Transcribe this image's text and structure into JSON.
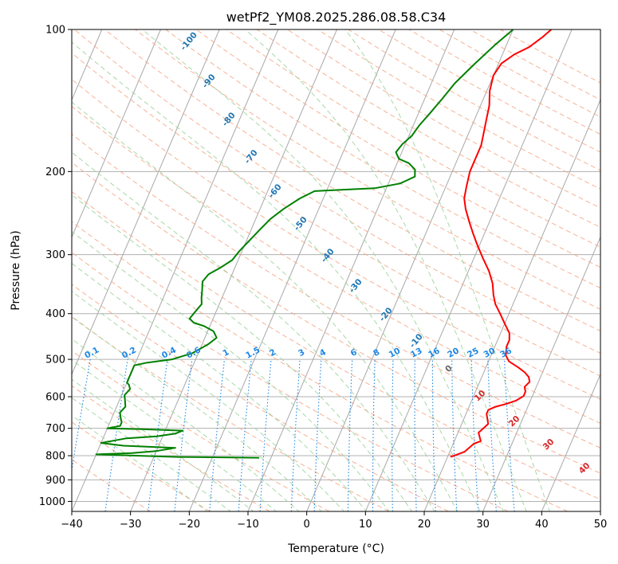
{
  "chart_data": {
    "type": "line",
    "title": "wetPf2_YM08.2025.286.08.58.C34",
    "xlabel": "Temperature (°C)",
    "ylabel": "Pressure (hPa)",
    "xlim": [
      -40,
      50
    ],
    "ylim": [
      1050,
      100
    ],
    "y_scale": "log",
    "x_ticks": [
      -40,
      -30,
      -20,
      -10,
      0,
      10,
      20,
      30,
      40,
      50
    ],
    "y_ticks": [
      100,
      200,
      300,
      400,
      500,
      600,
      700,
      800,
      900,
      1000
    ],
    "grid": true,
    "colors": {
      "temperature": "#ff0000",
      "dewpoint": "#008000",
      "isotherm": "#a8a8a8",
      "dry_adiabat": "#f4a582",
      "moist_adiabat": "#9fd49f",
      "mixing_ratio": "#1e88e5",
      "label_blue": "#1f77b4",
      "label_red": "#d62728",
      "label_gray": "#666666"
    },
    "series": [
      {
        "key": "temperature",
        "points": [
          [
            20.5,
            805
          ],
          [
            21.5,
            795
          ],
          [
            22.5,
            785
          ],
          [
            23,
            770
          ],
          [
            23.5,
            755
          ],
          [
            24.5,
            745
          ],
          [
            24,
            730
          ],
          [
            23.5,
            715
          ],
          [
            24,
            700
          ],
          [
            24.5,
            685
          ],
          [
            24,
            668
          ],
          [
            23.5,
            652
          ],
          [
            23.5,
            640
          ],
          [
            24.5,
            630
          ],
          [
            26,
            622
          ],
          [
            27.5,
            612
          ],
          [
            28.5,
            598
          ],
          [
            28.5,
            585
          ],
          [
            28,
            572
          ],
          [
            28.5,
            558
          ],
          [
            28,
            545
          ],
          [
            27,
            533
          ],
          [
            25.5,
            520
          ],
          [
            23.5,
            505
          ],
          [
            22.5,
            490
          ],
          [
            22,
            470
          ],
          [
            22,
            455
          ],
          [
            21.5,
            440
          ],
          [
            20,
            420
          ],
          [
            18.5,
            400
          ],
          [
            17,
            382
          ],
          [
            16,
            365
          ],
          [
            15,
            345
          ],
          [
            13.5,
            325
          ],
          [
            11.5,
            305
          ],
          [
            9.5,
            285
          ],
          [
            8,
            270
          ],
          [
            6.5,
            255
          ],
          [
            5,
            240
          ],
          [
            4,
            228
          ],
          [
            3.5,
            215
          ],
          [
            3,
            200
          ],
          [
            3,
            188
          ],
          [
            3,
            176
          ],
          [
            2.5,
            165
          ],
          [
            2,
            155
          ],
          [
            1.5,
            145
          ],
          [
            0.5,
            135
          ],
          [
            0,
            125
          ],
          [
            0.5,
            118
          ],
          [
            2,
            113
          ],
          [
            4,
            109
          ],
          [
            5.5,
            104
          ],
          [
            6.5,
            100
          ]
        ]
      },
      {
        "key": "dewpoint",
        "points": [
          [
            -12,
            808
          ],
          [
            -26,
            805
          ],
          [
            -40,
            795
          ],
          [
            -34,
            790
          ],
          [
            -30,
            782
          ],
          [
            -27,
            770
          ],
          [
            -36,
            762
          ],
          [
            -40,
            752
          ],
          [
            -36,
            735
          ],
          [
            -31,
            728
          ],
          [
            -28,
            718
          ],
          [
            -27,
            708
          ],
          [
            -34,
            703
          ],
          [
            -40,
            700
          ],
          [
            -38,
            692
          ],
          [
            -38,
            680
          ],
          [
            -38.5,
            665
          ],
          [
            -39,
            648
          ],
          [
            -38.5,
            630
          ],
          [
            -39,
            612
          ],
          [
            -39.5,
            595
          ],
          [
            -39,
            578
          ],
          [
            -39.5,
            566
          ],
          [
            -40,
            560
          ],
          [
            -40,
            515
          ],
          [
            -38,
            508
          ],
          [
            -34,
            500
          ],
          [
            -31,
            485
          ],
          [
            -29,
            465
          ],
          [
            -28,
            450
          ],
          [
            -29,
            436
          ],
          [
            -31,
            425
          ],
          [
            -33,
            418
          ],
          [
            -34,
            410
          ],
          [
            -33.5,
            395
          ],
          [
            -33,
            382
          ],
          [
            -33.5,
            370
          ],
          [
            -34,
            355
          ],
          [
            -34.5,
            342
          ],
          [
            -34,
            330
          ],
          [
            -32.5,
            320
          ],
          [
            -31,
            308
          ],
          [
            -30.5,
            296
          ],
          [
            -29.5,
            280
          ],
          [
            -28.5,
            265
          ],
          [
            -27.5,
            252
          ],
          [
            -26,
            240
          ],
          [
            -24,
            228
          ],
          [
            -22,
            220
          ],
          [
            -12,
            217
          ],
          [
            -8,
            212
          ],
          [
            -6,
            205
          ],
          [
            -6.5,
            198
          ],
          [
            -8,
            192
          ],
          [
            -10,
            188
          ],
          [
            -11,
            182
          ],
          [
            -10.5,
            175
          ],
          [
            -9.5,
            168
          ],
          [
            -9,
            160
          ],
          [
            -8,
            150
          ],
          [
            -7,
            140
          ],
          [
            -6,
            130
          ],
          [
            -4,
            118
          ],
          [
            -2,
            108
          ],
          [
            0,
            100
          ]
        ]
      }
    ],
    "dry_adiabat_labels": [
      "0",
      "10",
      "20",
      "30",
      "40"
    ],
    "dry_adiabat_label_values": [
      0,
      10,
      20,
      30,
      40
    ],
    "moist_labels": [
      "-100",
      "-90",
      "-80",
      "-70",
      "-60",
      "-50",
      "-40",
      "-30",
      "-20",
      "-10"
    ],
    "moist_label_values": [
      -100,
      -90,
      -80,
      -70,
      -60,
      -50,
      -40,
      -30,
      -20,
      -10
    ],
    "mixing_ratio_labels": [
      "0.1",
      "0.2",
      "0.4",
      "0.6",
      "1",
      "1.5",
      "2",
      "3",
      "4",
      "6",
      "8",
      "10",
      "13",
      "16",
      "20",
      "25",
      "30",
      "36"
    ],
    "mixing_ratio_values": [
      0.1,
      0.2,
      0.4,
      0.6,
      1,
      1.5,
      2,
      3,
      4,
      6,
      8,
      10,
      13,
      16,
      20,
      25,
      30,
      36
    ]
  }
}
